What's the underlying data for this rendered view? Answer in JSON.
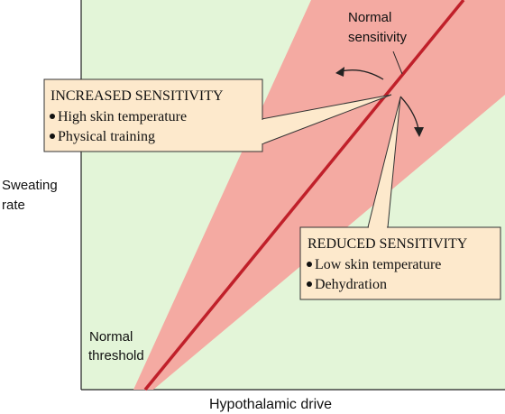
{
  "axes": {
    "y_label_line1": "Sweating",
    "y_label_line2": "rate",
    "x_label": "Hypothalamic drive"
  },
  "labels": {
    "normal_sensitivity_line1": "Normal",
    "normal_sensitivity_line2": "sensitivity",
    "normal_threshold_line1": "Normal",
    "normal_threshold_line2": "threshold"
  },
  "increased_box": {
    "title": "INCREASED SENSITIVITY",
    "items": [
      "High skin temperature",
      "Physical training"
    ]
  },
  "reduced_box": {
    "title": "REDUCED SENSITIVITY",
    "items": [
      "Low skin temperature",
      "Dehydration"
    ]
  },
  "colors": {
    "plot_background": "#e3f5d8",
    "sensitivity_wedge": "#f4aaa2",
    "normal_line": "#c0202a",
    "callout_box": "#fde9cc"
  }
}
